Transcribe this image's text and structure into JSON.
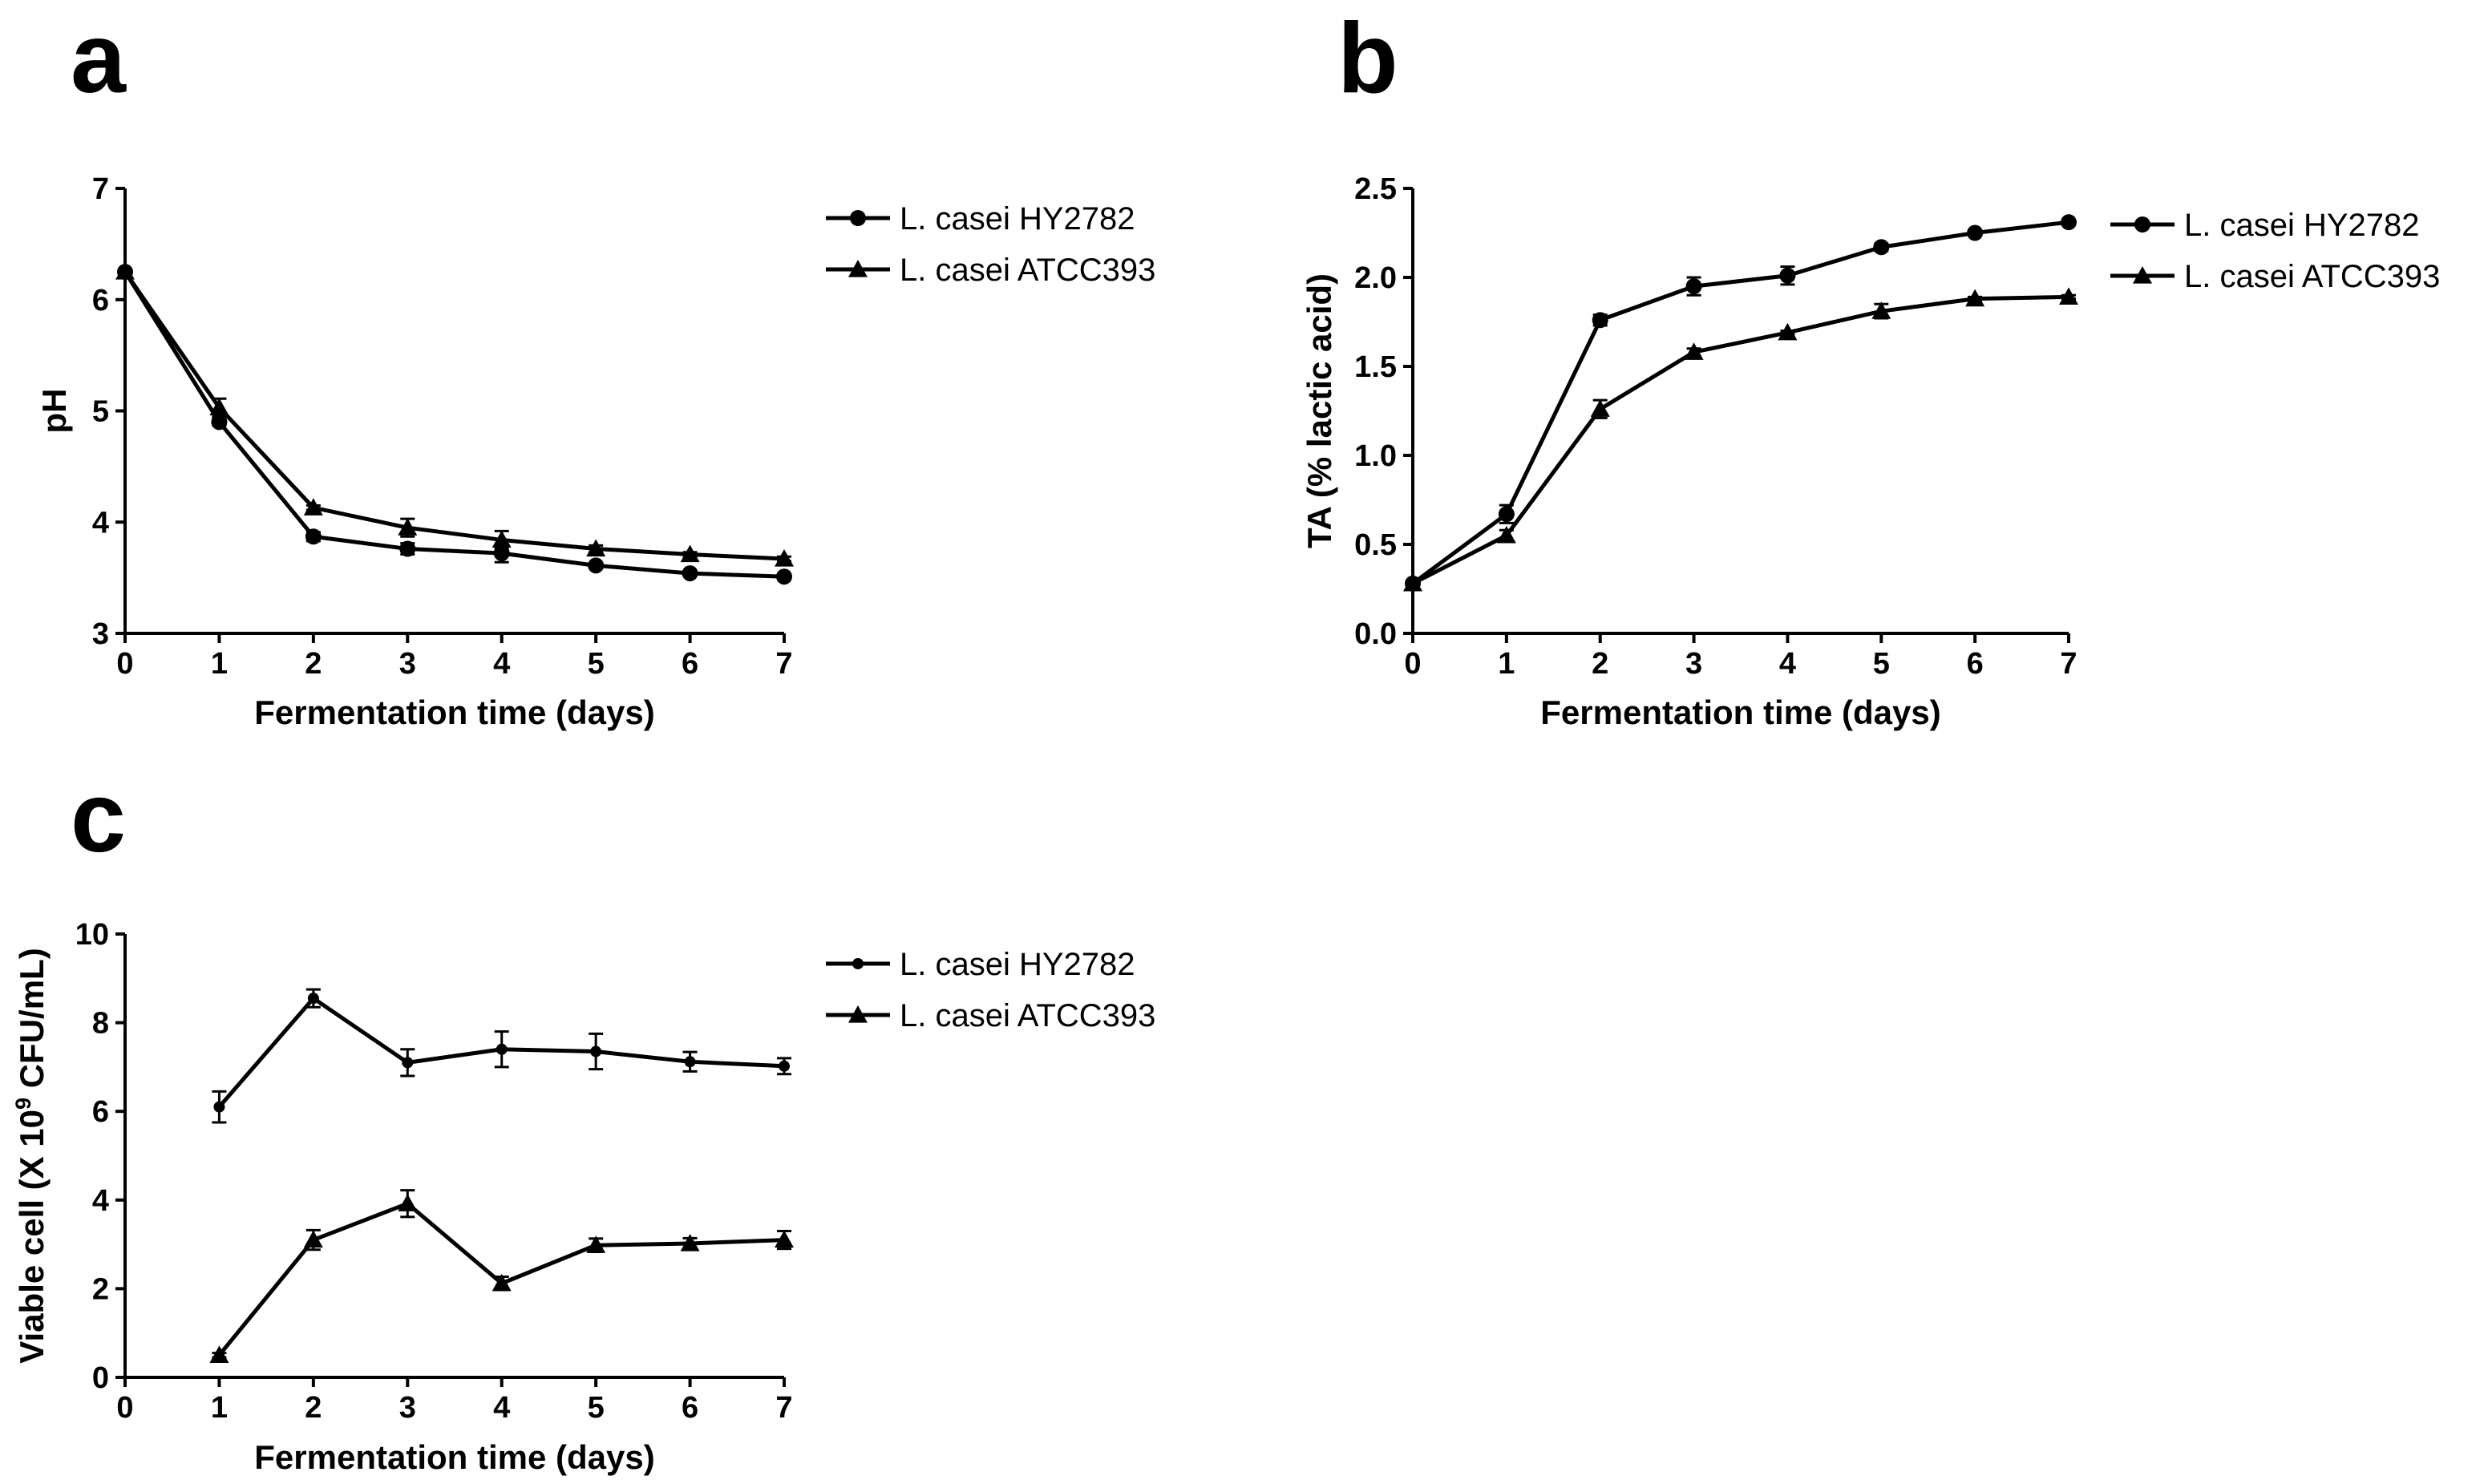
{
  "chart_data": [
    {
      "panel": "a",
      "type": "line",
      "xlabel": "Fermentation time (days)",
      "ylabel": "pH",
      "xlim": [
        0,
        7
      ],
      "ylim": [
        3,
        7
      ],
      "xticks": [
        0,
        1,
        2,
        3,
        4,
        5,
        6,
        7
      ],
      "yticks": [
        3,
        4,
        5,
        6,
        7
      ],
      "x": [
        0,
        1,
        2,
        3,
        4,
        5,
        6,
        7
      ],
      "series": [
        {
          "name": "L. casei HY2782",
          "marker": "circle",
          "values": [
            6.25,
            4.9,
            3.87,
            3.76,
            3.72,
            3.61,
            3.54,
            3.51
          ],
          "errors": [
            0.02,
            0.03,
            0.04,
            0.05,
            0.08,
            0.02,
            0.02,
            0.02
          ]
        },
        {
          "name": "L. casei ATCC393",
          "marker": "triangle",
          "values": [
            6.25,
            5.03,
            4.13,
            3.95,
            3.84,
            3.76,
            3.71,
            3.67
          ],
          "errors": [
            0.02,
            0.08,
            0.02,
            0.08,
            0.08,
            0.03,
            0.02,
            0.02
          ]
        }
      ],
      "legend": "top-right"
    },
    {
      "panel": "b",
      "type": "line",
      "xlabel": "Fermentation time (days)",
      "ylabel": "TA (% lactic acid)",
      "xlim": [
        0,
        7
      ],
      "ylim": [
        0,
        2.5
      ],
      "xticks": [
        0,
        1,
        2,
        3,
        4,
        5,
        6,
        7
      ],
      "yticks": [
        "0.0",
        "0.5",
        "1.0",
        "1.5",
        "2.0",
        "2.5"
      ],
      "x": [
        0,
        1,
        2,
        3,
        4,
        5,
        6,
        7
      ],
      "series": [
        {
          "name": "L. casei HY2782",
          "marker": "circle",
          "values": [
            0.28,
            0.67,
            1.76,
            1.95,
            2.01,
            2.17,
            2.25,
            2.31
          ],
          "errors": [
            0.01,
            0.05,
            0.03,
            0.05,
            0.05,
            0.02,
            0.01,
            0.01
          ]
        },
        {
          "name": "L. casei ATCC393",
          "marker": "triangle",
          "values": [
            0.28,
            0.55,
            1.26,
            1.58,
            1.69,
            1.81,
            1.88,
            1.89
          ],
          "errors": [
            0.01,
            0.03,
            0.05,
            0.02,
            0.01,
            0.04,
            0.01,
            0.01
          ]
        }
      ],
      "legend": "top-right"
    },
    {
      "panel": "c",
      "type": "line",
      "xlabel": "Fermentation time (days)",
      "ylabel_main": "Viable cell (X 10",
      "ylabel_sup": "9",
      "ylabel_end": " CFU/mL)",
      "xlim": [
        0,
        7
      ],
      "ylim": [
        0,
        10
      ],
      "xticks": [
        0,
        1,
        2,
        3,
        4,
        5,
        6,
        7
      ],
      "yticks": [
        0,
        2,
        4,
        6,
        8,
        10
      ],
      "x": [
        1,
        2,
        3,
        4,
        5,
        6,
        7
      ],
      "series": [
        {
          "name": "L. casei HY2782",
          "marker": "small-circle",
          "values": [
            6.1,
            8.55,
            7.1,
            7.4,
            7.35,
            7.12,
            7.02
          ],
          "errors": [
            0.35,
            0.2,
            0.3,
            0.4,
            0.4,
            0.22,
            0.18
          ]
        },
        {
          "name": "L. casei ATCC393",
          "marker": "triangle",
          "values": [
            0.5,
            3.1,
            3.92,
            2.12,
            2.98,
            3.02,
            3.1
          ],
          "errors": [
            0.05,
            0.22,
            0.3,
            0.15,
            0.15,
            0.12,
            0.2
          ]
        }
      ],
      "legend": "top-right"
    }
  ]
}
